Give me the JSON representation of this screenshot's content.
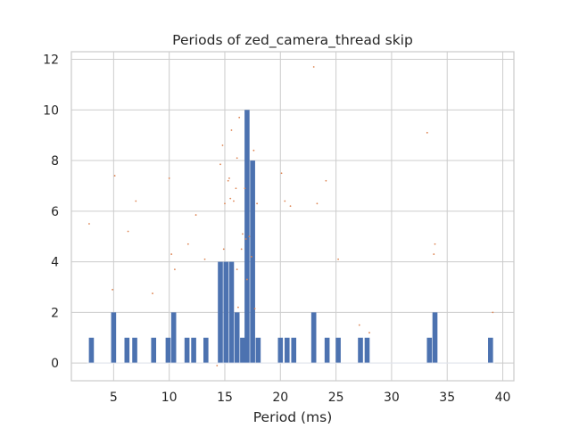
{
  "chart_data": {
    "type": "bar",
    "title": "Periods of zed_camera_thread skip",
    "xlabel": "Period (ms)",
    "ylabel": "",
    "xlim": [
      1.2,
      41.0
    ],
    "ylim": [
      -0.7,
      12.3
    ],
    "xticks": [
      5,
      10,
      15,
      20,
      25,
      30,
      35,
      40
    ],
    "yticks": [
      0,
      2,
      4,
      6,
      8,
      10,
      12
    ],
    "grid": true,
    "colors": {
      "bar": "#4c72b0",
      "scatter": "#dd8452",
      "grid": "#cccccc",
      "axes": "#cccccc"
    },
    "bar_width_ms": 0.45,
    "bars": [
      {
        "x": 3.0,
        "count": 1
      },
      {
        "x": 5.0,
        "count": 2
      },
      {
        "x": 6.2,
        "count": 1
      },
      {
        "x": 6.9,
        "count": 1
      },
      {
        "x": 8.6,
        "count": 1
      },
      {
        "x": 9.9,
        "count": 1
      },
      {
        "x": 10.4,
        "count": 2
      },
      {
        "x": 11.6,
        "count": 1
      },
      {
        "x": 12.2,
        "count": 1
      },
      {
        "x": 13.3,
        "count": 1
      },
      {
        "x": 14.6,
        "count": 4
      },
      {
        "x": 15.1,
        "count": 4
      },
      {
        "x": 15.6,
        "count": 4
      },
      {
        "x": 16.1,
        "count": 2
      },
      {
        "x": 16.6,
        "count": 1
      },
      {
        "x": 17.0,
        "count": 10
      },
      {
        "x": 17.5,
        "count": 8
      },
      {
        "x": 18.0,
        "count": 1
      },
      {
        "x": 20.0,
        "count": 1
      },
      {
        "x": 20.6,
        "count": 1
      },
      {
        "x": 21.2,
        "count": 1
      },
      {
        "x": 23.0,
        "count": 2
      },
      {
        "x": 24.2,
        "count": 1
      },
      {
        "x": 25.2,
        "count": 1
      },
      {
        "x": 27.2,
        "count": 1
      },
      {
        "x": 27.8,
        "count": 1
      },
      {
        "x": 33.4,
        "count": 1
      },
      {
        "x": 33.9,
        "count": 2
      },
      {
        "x": 38.9,
        "count": 1
      }
    ],
    "scatter": [
      [
        2.8,
        5.5
      ],
      [
        5.1,
        7.4
      ],
      [
        4.9,
        2.9
      ],
      [
        6.3,
        5.2
      ],
      [
        7.0,
        6.4
      ],
      [
        8.5,
        2.75
      ],
      [
        10.0,
        7.3
      ],
      [
        10.2,
        4.3
      ],
      [
        10.5,
        3.7
      ],
      [
        11.7,
        4.7
      ],
      [
        12.4,
        5.85
      ],
      [
        13.2,
        4.1
      ],
      [
        14.3,
        -0.1
      ],
      [
        14.6,
        7.85
      ],
      [
        14.8,
        8.6
      ],
      [
        15.0,
        6.3
      ],
      [
        14.9,
        4.5
      ],
      [
        15.3,
        7.2
      ],
      [
        15.4,
        7.3
      ],
      [
        15.5,
        6.5
      ],
      [
        15.6,
        9.2
      ],
      [
        15.8,
        6.4
      ],
      [
        16.0,
        6.9
      ],
      [
        16.1,
        3.7
      ],
      [
        16.2,
        2.2
      ],
      [
        16.5,
        4.5
      ],
      [
        16.6,
        5.1
      ],
      [
        16.8,
        6.9
      ],
      [
        16.9,
        4.9
      ],
      [
        17.0,
        3.3
      ],
      [
        17.2,
        5.0
      ],
      [
        17.4,
        4.2
      ],
      [
        17.6,
        8.4
      ],
      [
        17.7,
        2.15
      ],
      [
        17.9,
        6.3
      ],
      [
        16.3,
        9.7
      ],
      [
        16.1,
        8.1
      ],
      [
        20.1,
        7.5
      ],
      [
        20.4,
        6.4
      ],
      [
        20.9,
        6.2
      ],
      [
        23.0,
        11.7
      ],
      [
        23.3,
        6.3
      ],
      [
        24.1,
        7.2
      ],
      [
        25.2,
        4.1
      ],
      [
        27.1,
        1.5
      ],
      [
        28.0,
        1.2
      ],
      [
        33.2,
        9.1
      ],
      [
        33.9,
        4.7
      ],
      [
        33.8,
        4.3
      ],
      [
        39.1,
        2.0
      ]
    ]
  }
}
